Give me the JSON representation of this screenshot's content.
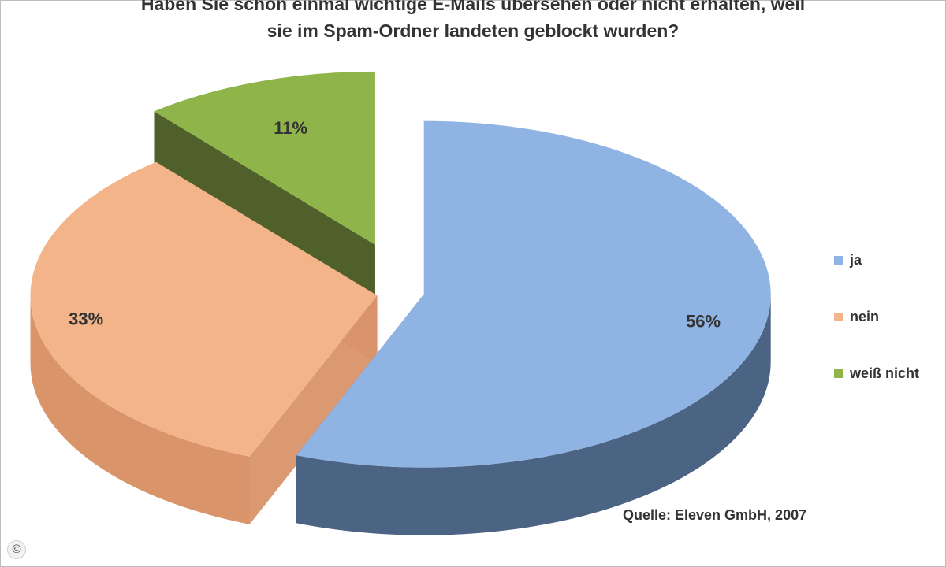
{
  "chart_data": {
    "type": "pie",
    "title_lines": [
      "Haben Sie schon einmal wichtige E-Mails übersehen oder nicht erhalten, weil",
      "sie im Spam-Ordner landeten geblockt wurden?"
    ],
    "categories": [
      "ja",
      "nein",
      "weiß nicht"
    ],
    "values": [
      56,
      33,
      11
    ],
    "data_labels": [
      "56%",
      "33%",
      "11%"
    ],
    "colors": {
      "ja": "#8fb4e3",
      "nein": "#f4b48a",
      "weiß nicht": "#8fb54a"
    },
    "side_colors": {
      "ja": "#4b6484",
      "nein": "#d9946a",
      "weiß nicht": "#46571f"
    },
    "style": "3d-exploded",
    "legend_position": "right"
  },
  "source": "Quelle: Eleven GmbH, 2007",
  "copyright_symbol": "©"
}
